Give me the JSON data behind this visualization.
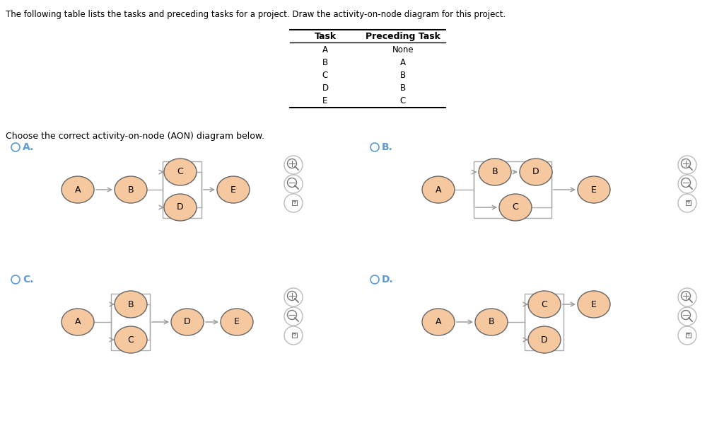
{
  "title_text": "The following table lists the tasks and preceding tasks for a project. Draw the activity-on-node diagram for this project.",
  "table_tasks": [
    "A",
    "B",
    "C",
    "D",
    "E"
  ],
  "table_preceding": [
    "None",
    "A",
    "B",
    "B",
    "C"
  ],
  "choose_text": "Choose the correct activity-on-node (AON) diagram below.",
  "node_color": "#F5C8A0",
  "node_edge_color": "#666666",
  "arrow_color": "#999999",
  "box_color": "#aaaaaa",
  "radio_color": "#5b9bd5",
  "bg_color": "#ffffff",
  "font_size_title": 8.5,
  "font_size_node": 9,
  "font_size_label": 10,
  "font_size_table": 8.5
}
